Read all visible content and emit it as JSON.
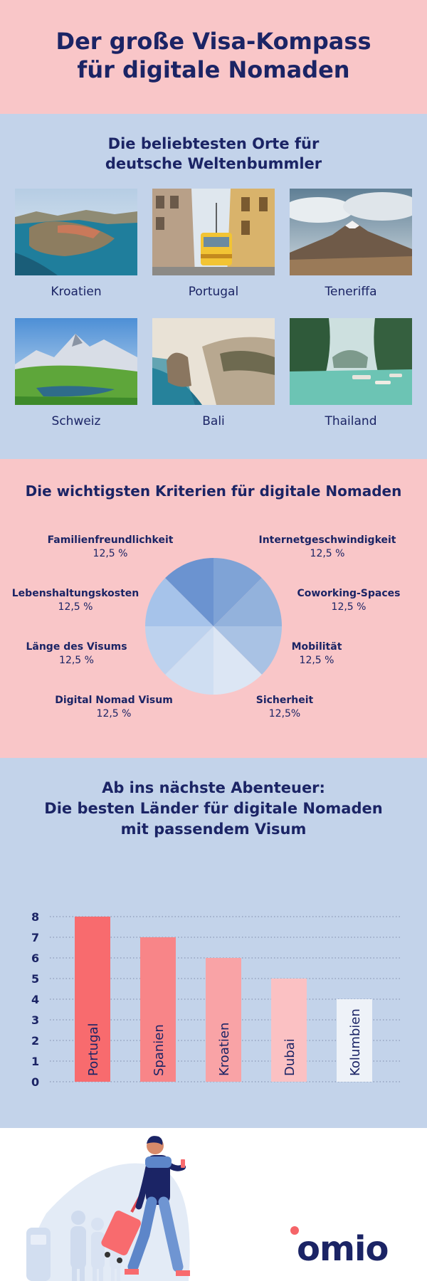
{
  "header": {
    "title_line1": "Der große Visa-Kompass",
    "title_line2": "für digitale Nomaden"
  },
  "places": {
    "title_line1": "Die beliebtesten Orte für",
    "title_line2": "deutsche Weltenbummler",
    "items": [
      {
        "label": "Kroatien"
      },
      {
        "label": "Portugal"
      },
      {
        "label": "Teneriffa"
      },
      {
        "label": "Schweiz"
      },
      {
        "label": "Bali"
      },
      {
        "label": "Thailand"
      }
    ]
  },
  "criteria": {
    "title": "Die wichtigsten Kriterien für digitale Nomaden",
    "items": [
      {
        "name": "Internetgeschwindigkeit",
        "value": "12,5 %",
        "color": "#7fa3d6"
      },
      {
        "name": "Coworking-Spaces",
        "value": "12,5 %",
        "color": "#93b2dc"
      },
      {
        "name": "Mobilität",
        "value": "12,5 %",
        "color": "#a9c2e4"
      },
      {
        "name": "Sicherheit",
        "value": "12,5%",
        "color": "#dce6f4"
      },
      {
        "name": "Digital Nomad Visum",
        "value": "12,5 %",
        "color": "#cfdef2"
      },
      {
        "name": "Länge des Visums",
        "value": "12,5 %",
        "color": "#bdd2ee"
      },
      {
        "name": "Lebenshaltungskosten",
        "value": "12,5 %",
        "color": "#a6c3ea"
      },
      {
        "name": "Familienfreundlichkeit",
        "value": "12,5 %",
        "color": "#6b93d0"
      }
    ]
  },
  "countries": {
    "title_line1": "Ab ins nächste Abenteuer:",
    "title_line2": "Die besten Länder für digitale Nomaden",
    "title_line3": "mit passendem Visum"
  },
  "chart_data": {
    "type": "bar",
    "categories": [
      "Portugal",
      "Spanien",
      "Kroatien",
      "Dubai",
      "Kolumbien"
    ],
    "values": [
      8,
      7,
      6,
      5,
      4
    ],
    "colors": [
      "#f86b6e",
      "#f88588",
      "#f9a3a6",
      "#fbc1c3",
      "#eef2f8"
    ],
    "title": "Die besten Länder für digitale Nomaden mit passendem Visum",
    "xlabel": "",
    "ylabel": "",
    "ylim": [
      0,
      8
    ],
    "yticks": [
      "0",
      "1",
      "2",
      "3",
      "4",
      "5",
      "6",
      "7",
      "8"
    ],
    "grid": true
  },
  "footer": {
    "logo": "omio"
  }
}
